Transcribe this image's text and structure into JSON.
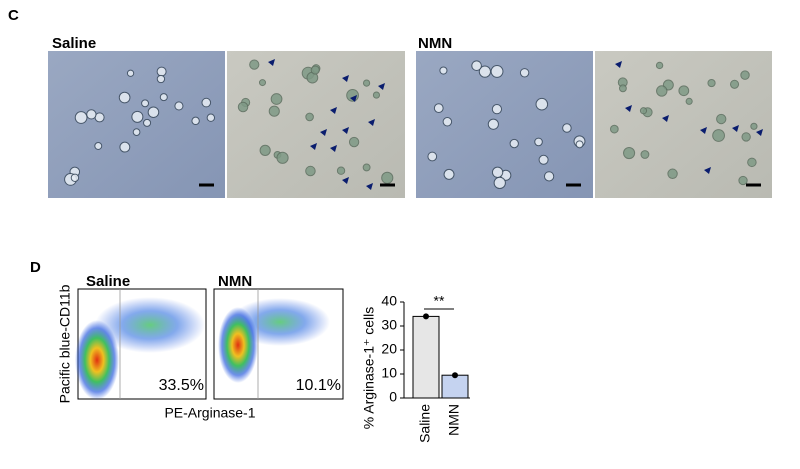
{
  "panel_c": {
    "label": "C",
    "groups": [
      "Saline",
      "NMN"
    ]
  },
  "panel_d": {
    "label": "D",
    "flow": {
      "y_label": "Pacific blue-CD11b",
      "x_label": "PE-Arginase-1",
      "plots": [
        {
          "title": "Saline",
          "percent": "33.5%"
        },
        {
          "title": "NMN",
          "percent": "10.1%"
        }
      ]
    }
  },
  "chart_data": {
    "type": "bar",
    "y_label": "% Arginase-1⁺ cells",
    "categories": [
      "Saline",
      "NMN"
    ],
    "values": [
      34,
      9.5
    ],
    "errors": [
      1,
      1
    ],
    "colors": [
      "#e6e6e6",
      "#c5d3f0"
    ],
    "ylim": [
      0,
      40
    ],
    "yticks": [
      0,
      10,
      20,
      30,
      40
    ],
    "annotation": "**"
  }
}
